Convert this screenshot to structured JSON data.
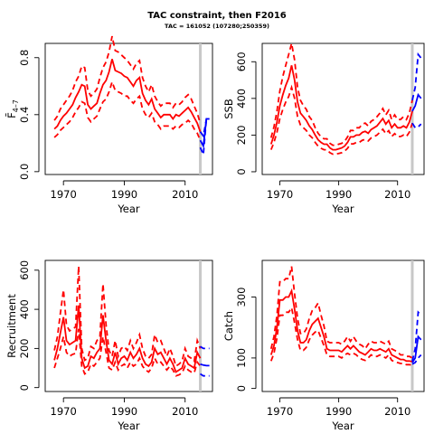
{
  "title": "TAC constraint, then F2016",
  "subtitle": "TAC = 161052 (107280;250359)",
  "chart_data": [
    {
      "type": "line",
      "panel": "top-left",
      "xlabel": "Year",
      "ylabel": "F̄",
      "ylabel_sub": "4–7",
      "xlim": [
        1964,
        2019
      ],
      "ylim": [
        -0.02,
        0.9
      ],
      "xticks": [
        1970,
        1990,
        2010
      ],
      "yticks": [
        0.0,
        0.4,
        0.8
      ],
      "ytick_labels": [
        "0.0",
        "0.4",
        "0.8"
      ],
      "vline_x": 2015,
      "history": {
        "color": "#ff0000",
        "x": [
          1967,
          1968,
          1969,
          1970,
          1971,
          1972,
          1973,
          1974,
          1975,
          1976,
          1977,
          1978,
          1979,
          1980,
          1981,
          1982,
          1983,
          1984,
          1985,
          1986,
          1987,
          1988,
          1989,
          1990,
          1991,
          1992,
          1993,
          1994,
          1995,
          1996,
          1997,
          1998,
          1999,
          2000,
          2001,
          2002,
          2003,
          2004,
          2005,
          2006,
          2007,
          2008,
          2009,
          2010,
          2011,
          2012,
          2013,
          2014,
          2015
        ],
        "estimate": [
          0.3,
          0.32,
          0.36,
          0.39,
          0.41,
          0.44,
          0.47,
          0.52,
          0.56,
          0.61,
          0.6,
          0.47,
          0.44,
          0.46,
          0.48,
          0.55,
          0.61,
          0.64,
          0.7,
          0.79,
          0.71,
          0.7,
          0.69,
          0.67,
          0.66,
          0.63,
          0.6,
          0.64,
          0.66,
          0.55,
          0.5,
          0.47,
          0.51,
          0.44,
          0.41,
          0.38,
          0.4,
          0.4,
          0.4,
          0.37,
          0.4,
          0.39,
          0.41,
          0.43,
          0.45,
          0.42,
          0.38,
          0.34,
          0.28
        ],
        "upper": [
          0.36,
          0.39,
          0.44,
          0.47,
          0.5,
          0.53,
          0.57,
          0.63,
          0.67,
          0.74,
          0.73,
          0.57,
          0.53,
          0.55,
          0.58,
          0.66,
          0.73,
          0.77,
          0.84,
          0.95,
          0.85,
          0.84,
          0.82,
          0.8,
          0.78,
          0.75,
          0.72,
          0.76,
          0.78,
          0.66,
          0.6,
          0.56,
          0.61,
          0.53,
          0.49,
          0.46,
          0.48,
          0.48,
          0.48,
          0.45,
          0.48,
          0.47,
          0.49,
          0.52,
          0.54,
          0.51,
          0.46,
          0.41,
          0.34
        ],
        "lower": [
          0.24,
          0.26,
          0.29,
          0.31,
          0.33,
          0.35,
          0.38,
          0.42,
          0.45,
          0.49,
          0.48,
          0.38,
          0.35,
          0.37,
          0.39,
          0.44,
          0.49,
          0.51,
          0.56,
          0.63,
          0.57,
          0.56,
          0.55,
          0.53,
          0.53,
          0.5,
          0.48,
          0.51,
          0.53,
          0.44,
          0.4,
          0.38,
          0.41,
          0.35,
          0.33,
          0.3,
          0.32,
          0.32,
          0.32,
          0.3,
          0.32,
          0.31,
          0.33,
          0.34,
          0.36,
          0.34,
          0.3,
          0.27,
          0.22
        ]
      },
      "projection": {
        "color": "#0000ff",
        "x": [
          2015,
          2016,
          2017,
          2018
        ],
        "estimate": [
          0.22,
          0.18,
          0.37,
          0.37
        ],
        "upper": [
          0.28,
          0.25,
          0.37,
          0.37
        ],
        "lower": [
          0.17,
          0.12,
          0.37,
          0.37
        ]
      }
    },
    {
      "type": "line",
      "panel": "top-right",
      "xlabel": "Year",
      "ylabel": "SSB",
      "xlim": [
        1964,
        2019
      ],
      "ylim": [
        -15,
        700
      ],
      "xticks": [
        1970,
        1990,
        2010
      ],
      "yticks": [
        0,
        200,
        400,
        600
      ],
      "ytick_labels": [
        "0",
        "200",
        "400",
        "600"
      ],
      "vline_x": 2015,
      "history": {
        "color": "#ff0000",
        "x": [
          1967,
          1968,
          1969,
          1970,
          1971,
          1972,
          1973,
          1974,
          1975,
          1976,
          1977,
          1978,
          1979,
          1980,
          1981,
          1982,
          1983,
          1984,
          1985,
          1986,
          1987,
          1988,
          1989,
          1990,
          1991,
          1992,
          1993,
          1994,
          1995,
          1996,
          1997,
          1998,
          1999,
          2000,
          2001,
          2002,
          2003,
          2004,
          2005,
          2006,
          2007,
          2008,
          2009,
          2010,
          2011,
          2012,
          2013,
          2014,
          2015
        ],
        "estimate": [
          150,
          200,
          270,
          360,
          420,
          470,
          510,
          580,
          500,
          380,
          320,
          300,
          280,
          250,
          230,
          200,
          175,
          160,
          150,
          150,
          130,
          120,
          120,
          125,
          130,
          140,
          160,
          190,
          190,
          200,
          200,
          215,
          220,
          210,
          230,
          240,
          250,
          270,
          290,
          260,
          280,
          240,
          260,
          240,
          240,
          250,
          240,
          270,
          330
        ],
        "upper": [
          185,
          245,
          330,
          440,
          520,
          580,
          640,
          700,
          610,
          460,
          390,
          360,
          340,
          300,
          280,
          240,
          210,
          190,
          180,
          180,
          155,
          145,
          145,
          150,
          155,
          165,
          190,
          225,
          225,
          240,
          240,
          260,
          265,
          250,
          275,
          285,
          300,
          320,
          345,
          310,
          335,
          285,
          310,
          285,
          285,
          300,
          285,
          320,
          390
        ],
        "lower": [
          120,
          160,
          215,
          290,
          340,
          380,
          410,
          460,
          400,
          300,
          255,
          240,
          225,
          200,
          185,
          160,
          140,
          128,
          120,
          120,
          104,
          96,
          96,
          100,
          104,
          112,
          128,
          152,
          152,
          160,
          160,
          172,
          176,
          168,
          184,
          192,
          200,
          216,
          232,
          208,
          224,
          192,
          208,
          192,
          192,
          200,
          192,
          216,
          265
        ]
      },
      "projection": {
        "color": "#0000ff",
        "x": [
          2015,
          2016,
          2017,
          2018
        ],
        "estimate": [
          330,
          360,
          420,
          400
        ],
        "upper": [
          390,
          460,
          640,
          620
        ],
        "lower": [
          265,
          240,
          245,
          260
        ]
      }
    },
    {
      "type": "line",
      "panel": "bottom-left",
      "xlabel": "Year",
      "ylabel": "Recruitment",
      "xlim": [
        1964,
        2019
      ],
      "ylim": [
        -20,
        650
      ],
      "xticks": [
        1970,
        1990,
        2010
      ],
      "yticks": [
        0,
        200,
        400,
        600
      ],
      "ytick_labels": [
        "0",
        "200",
        "400",
        "600"
      ],
      "vline_x": 2015,
      "history": {
        "color": "#ff0000",
        "x": [
          1967,
          1968,
          1969,
          1970,
          1971,
          1972,
          1973,
          1974,
          1975,
          1976,
          1977,
          1978,
          1979,
          1980,
          1981,
          1982,
          1983,
          1984,
          1985,
          1986,
          1987,
          1988,
          1989,
          1990,
          1991,
          1992,
          1993,
          1994,
          1995,
          1996,
          1997,
          1998,
          1999,
          2000,
          2001,
          2002,
          2003,
          2004,
          2005,
          2006,
          2007,
          2008,
          2009,
          2010,
          2011,
          2012,
          2013,
          2014,
          2015
        ],
        "estimate": [
          140,
          200,
          280,
          360,
          240,
          220,
          230,
          240,
          420,
          150,
          100,
          110,
          160,
          150,
          180,
          200,
          370,
          240,
          140,
          120,
          180,
          120,
          150,
          160,
          140,
          180,
          150,
          170,
          200,
          150,
          120,
          110,
          130,
          200,
          170,
          180,
          150,
          120,
          150,
          120,
          80,
          90,
          100,
          150,
          120,
          110,
          100,
          180,
          150
        ],
        "upper": [
          190,
          260,
          380,
          500,
          320,
          290,
          300,
          310,
          620,
          200,
          140,
          150,
          210,
          200,
          240,
          260,
          530,
          320,
          190,
          160,
          240,
          160,
          200,
          210,
          190,
          240,
          200,
          230,
          270,
          200,
          160,
          150,
          170,
          270,
          230,
          240,
          200,
          160,
          200,
          160,
          110,
          120,
          135,
          200,
          160,
          150,
          135,
          240,
          200
        ],
        "lower": [
          100,
          150,
          200,
          260,
          180,
          160,
          170,
          175,
          300,
          110,
          70,
          80,
          120,
          110,
          130,
          150,
          260,
          180,
          100,
          90,
          130,
          90,
          110,
          120,
          100,
          130,
          110,
          120,
          150,
          110,
          90,
          80,
          100,
          150,
          120,
          130,
          110,
          90,
          110,
          90,
          60,
          65,
          75,
          110,
          90,
          80,
          75,
          130,
          110
        ]
      },
      "projection": {
        "color": "#0000ff",
        "x": [
          2015,
          2016,
          2017,
          2018
        ],
        "estimate": [
          120,
          115,
          112,
          112
        ],
        "upper": [
          210,
          200,
          200,
          200
        ],
        "lower": [
          70,
          60,
          60,
          60
        ]
      }
    },
    {
      "type": "line",
      "panel": "bottom-right",
      "xlabel": "Year",
      "ylabel": "Catch",
      "xlim": [
        1964,
        2019
      ],
      "ylim": [
        -10,
        420
      ],
      "xticks": [
        1970,
        1990,
        2010
      ],
      "yticks": [
        0,
        100,
        300
      ],
      "ytick_labels": [
        "0",
        "100",
        "300"
      ],
      "vline_x": 2015,
      "history": {
        "color": "#ff0000",
        "x": [
          1967,
          1968,
          1969,
          1970,
          1971,
          1972,
          1973,
          1974,
          1975,
          1976,
          1977,
          1978,
          1979,
          1980,
          1981,
          1982,
          1983,
          1984,
          1985,
          1986,
          1987,
          1988,
          1989,
          1990,
          1991,
          1992,
          1993,
          1994,
          1995,
          1996,
          1997,
          1998,
          1999,
          2000,
          2001,
          2002,
          2003,
          2004,
          2005,
          2006,
          2007,
          2008,
          2009,
          2010,
          2011,
          2012,
          2013,
          2014,
          2015
        ],
        "estimate": [
          110,
          140,
          200,
          290,
          290,
          300,
          300,
          320,
          260,
          190,
          150,
          150,
          160,
          190,
          210,
          220,
          230,
          200,
          170,
          130,
          125,
          125,
          125,
          125,
          120,
          130,
          140,
          130,
          140,
          130,
          120,
          115,
          110,
          120,
          130,
          125,
          125,
          130,
          125,
          120,
          130,
          110,
          105,
          100,
          95,
          95,
          90,
          90,
          88
        ],
        "upper": [
          130,
          170,
          240,
          350,
          350,
          360,
          360,
          400,
          310,
          230,
          180,
          180,
          195,
          230,
          255,
          265,
          280,
          240,
          205,
          155,
          150,
          150,
          150,
          150,
          145,
          155,
          170,
          155,
          170,
          155,
          145,
          140,
          130,
          145,
          155,
          150,
          150,
          155,
          150,
          145,
          155,
          130,
          125,
          120,
          110,
          110,
          105,
          105,
          100
        ],
        "lower": [
          90,
          115,
          165,
          240,
          240,
          250,
          250,
          265,
          215,
          160,
          125,
          125,
          135,
          160,
          175,
          185,
          190,
          165,
          140,
          110,
          105,
          105,
          105,
          105,
          100,
          110,
          115,
          110,
          115,
          110,
          100,
          95,
          92,
          100,
          110,
          105,
          105,
          110,
          105,
          100,
          110,
          92,
          88,
          85,
          82,
          82,
          78,
          78,
          76
        ]
      },
      "projection": {
        "color": "#0000ff",
        "x": [
          2015,
          2016,
          2017,
          2018
        ],
        "estimate": [
          85,
          100,
          170,
          160
        ],
        "upper": [
          90,
          130,
          250,
          240
        ],
        "lower": [
          80,
          85,
          100,
          110
        ]
      }
    }
  ]
}
